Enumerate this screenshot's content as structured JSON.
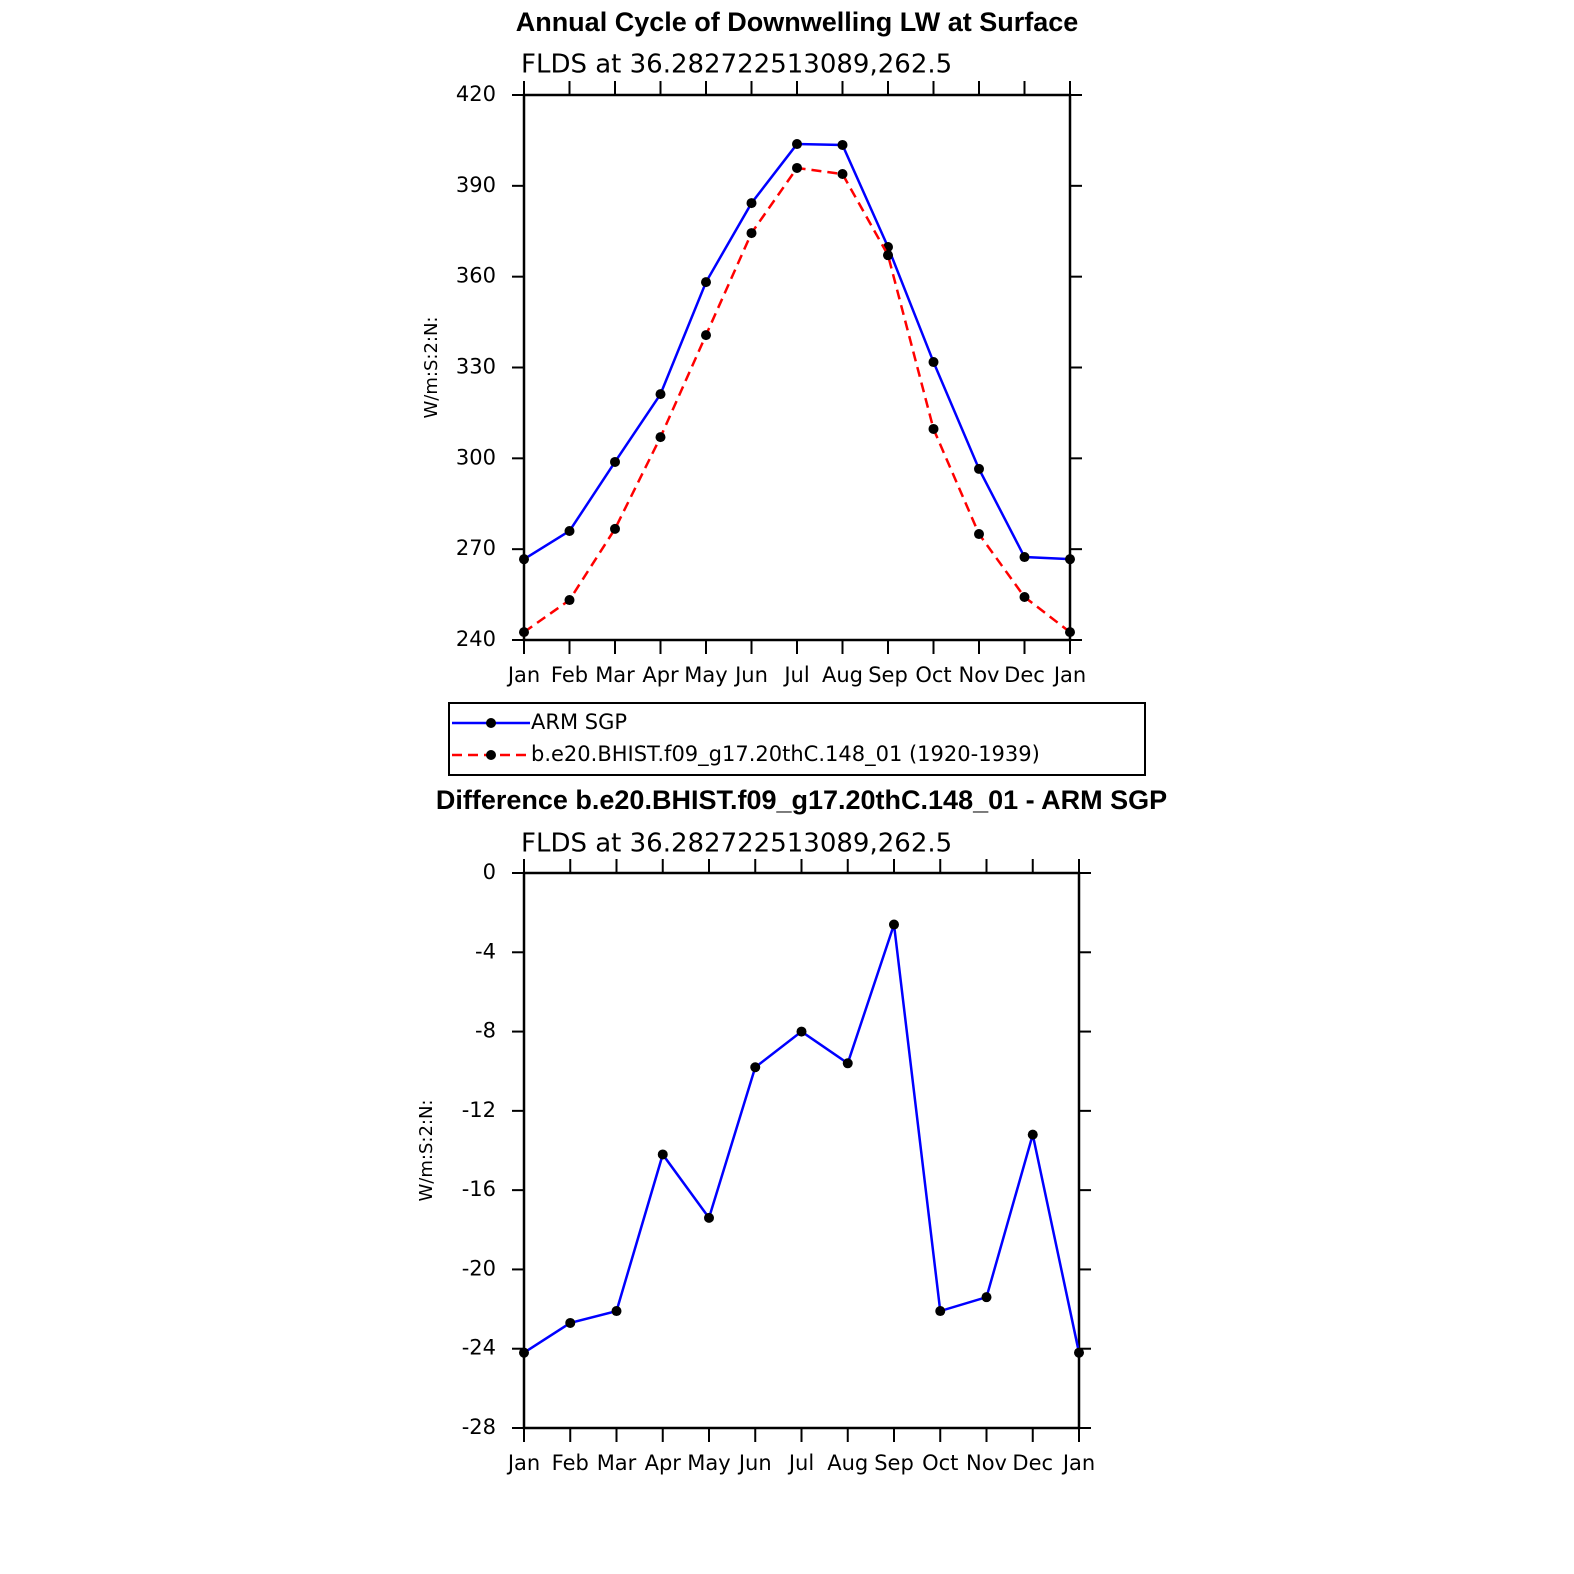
{
  "chart_data": [
    {
      "type": "line",
      "title": "Annual Cycle of Downwelling LW at Surface",
      "subtitle": "FLDS at 36.282722513089,262.5",
      "y_label": "W/m:S:2:N:",
      "categories": [
        "Jan",
        "Feb",
        "Mar",
        "Apr",
        "May",
        "Jun",
        "Jul",
        "Aug",
        "Sep",
        "Oct",
        "Nov",
        "Dec",
        "Jan"
      ],
      "series": [
        {
          "name": "ARM SGP",
          "color": "#0000ff",
          "line_style": "solid",
          "values": [
            266.7,
            276.0,
            298.8,
            321.2,
            358.2,
            384.3,
            403.8,
            403.5,
            369.8,
            331.8,
            296.5,
            267.4,
            266.7
          ]
        },
        {
          "name": "b.e20.BHIST.f09_g17.20thC.148_01 (1920-1939)",
          "color": "#ff0000",
          "line_style": "dashed",
          "values": [
            242.6,
            253.2,
            276.7,
            307.0,
            340.7,
            374.4,
            395.9,
            393.9,
            367.1,
            309.7,
            275.0,
            254.2,
            242.6
          ]
        }
      ],
      "ylim": [
        240,
        420
      ],
      "yticks": [
        240,
        270,
        300,
        330,
        360,
        390,
        420
      ],
      "legend": "below"
    },
    {
      "type": "line",
      "title": "Difference b.e20.BHIST.f09_g17.20thC.148_01 - ARM SGP",
      "subtitle": "FLDS at 36.282722513089,262.5",
      "y_label": "W/m:S:2:N:",
      "categories": [
        "Jan",
        "Feb",
        "Mar",
        "Apr",
        "May",
        "Jun",
        "Jul",
        "Aug",
        "Sep",
        "Oct",
        "Nov",
        "Dec",
        "Jan"
      ],
      "color": "#0000ff",
      "values": [
        -24.2,
        -22.7,
        -22.1,
        -14.2,
        -17.4,
        -9.8,
        -8.0,
        -9.6,
        -2.6,
        -22.1,
        -21.4,
        -13.2,
        -24.2
      ],
      "ylim": [
        -28,
        0
      ],
      "yticks": [
        -28,
        -24,
        -20,
        -16,
        -12,
        -8,
        -4,
        0
      ]
    }
  ]
}
